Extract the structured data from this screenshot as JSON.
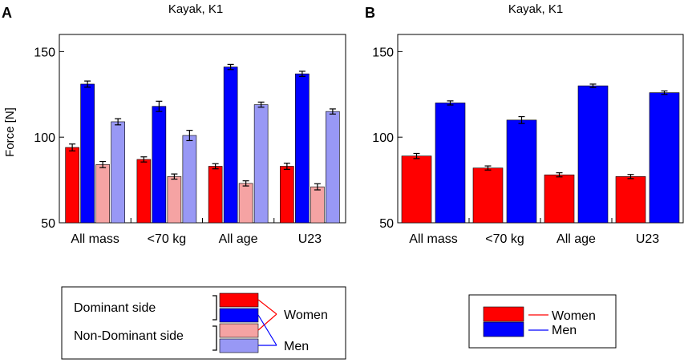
{
  "colors": {
    "women_dominant": "#ff0000",
    "men_dominant": "#0000ff",
    "women_nondominant": "#f5a3a3",
    "men_nondominant": "#9898f5"
  },
  "chart_data": [
    {
      "panel": "A",
      "type": "bar",
      "title": "Kayak, K1",
      "xlabel": "",
      "ylabel": "Force [N]",
      "ylim": [
        50,
        160
      ],
      "yticks": [
        "50",
        "100",
        "150"
      ],
      "categories": [
        "All mass",
        "<70 kg",
        "All age",
        "U23"
      ],
      "series": [
        {
          "name": "Women Dominant side",
          "color": "#ff0000",
          "values": [
            94,
            87,
            83,
            83
          ],
          "errors": [
            2,
            1.5,
            1.5,
            1.8
          ]
        },
        {
          "name": "Men Dominant side",
          "color": "#0000ff",
          "values": [
            131,
            118,
            141,
            137
          ],
          "errors": [
            1.8,
            3,
            1.5,
            1.5
          ]
        },
        {
          "name": "Women Non-Dominant side",
          "color": "#f5a3a3",
          "values": [
            84,
            77,
            73,
            71
          ],
          "errors": [
            1.8,
            1.5,
            1.5,
            1.8
          ]
        },
        {
          "name": "Men Non-Dominant side",
          "color": "#9898f5",
          "values": [
            109,
            101,
            119,
            115
          ],
          "errors": [
            1.8,
            3,
            1.5,
            1.5
          ]
        }
      ],
      "legend": {
        "row_labels": [
          "Dominant side",
          "Non-Dominant side"
        ],
        "group_labels": [
          "Women",
          "Men"
        ],
        "placement": "bottom-left"
      }
    },
    {
      "panel": "B",
      "type": "bar",
      "title": "Kayak, K1",
      "xlabel": "",
      "ylabel": "",
      "ylim": [
        50,
        160
      ],
      "yticks": [
        "50",
        "100",
        "150"
      ],
      "categories": [
        "All mass",
        "<70 kg",
        "All age",
        "U23"
      ],
      "series": [
        {
          "name": "Women",
          "color": "#ff0000",
          "values": [
            89,
            82,
            78,
            77
          ],
          "errors": [
            1.5,
            1.2,
            1.2,
            1.2
          ]
        },
        {
          "name": "Men",
          "color": "#0000ff",
          "values": [
            120,
            110,
            130,
            126
          ],
          "errors": [
            1.2,
            2,
            1,
            1
          ]
        }
      ],
      "legend": {
        "labels": [
          "Women",
          "Men"
        ],
        "placement": "bottom-right"
      }
    }
  ]
}
